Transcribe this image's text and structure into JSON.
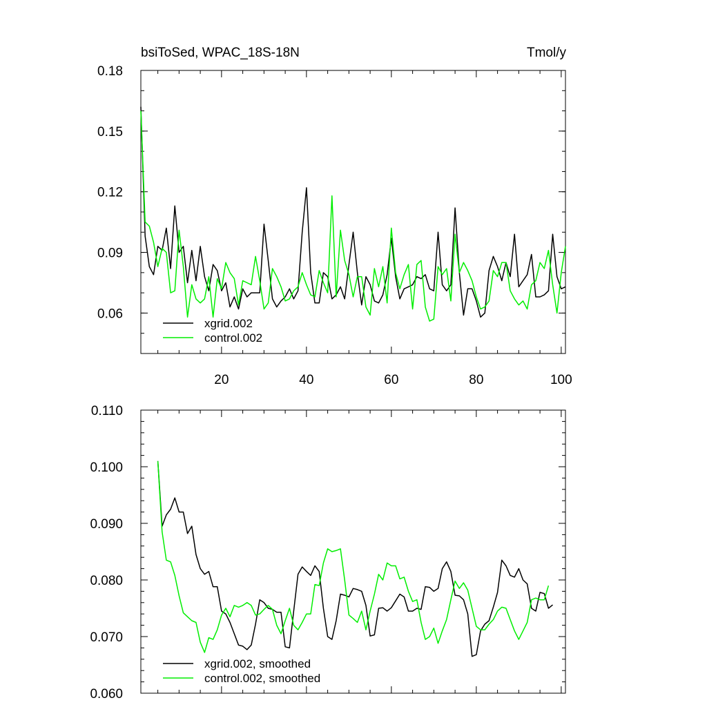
{
  "chart_data": [
    {
      "type": "line",
      "title": "bsiToSed, WPAC_18S-18N",
      "units": "Tmol/y",
      "xlim": [
        1,
        101
      ],
      "ylim": [
        0.04,
        0.18
      ],
      "x_ticks": [
        20,
        40,
        60,
        80,
        100
      ],
      "x_tick_labels": [
        "20",
        "40",
        "60",
        "80",
        "100"
      ],
      "y_ticks": [
        0.06,
        0.09,
        0.12,
        0.15,
        0.18
      ],
      "y_tick_labels": [
        "0.06",
        "0.09",
        "0.12",
        "0.15",
        "0.18"
      ],
      "legend_position": "bottom-left",
      "series": [
        {
          "name": "xgrid.002",
          "color": "#000000",
          "x_start": 1,
          "values": [
            0.162,
            0.098,
            0.083,
            0.079,
            0.093,
            0.091,
            0.102,
            0.082,
            0.113,
            0.09,
            0.093,
            0.075,
            0.091,
            0.076,
            0.093,
            0.078,
            0.071,
            0.084,
            0.081,
            0.071,
            0.075,
            0.063,
            0.068,
            0.062,
            0.072,
            0.068,
            0.07,
            0.07,
            0.07,
            0.104,
            0.086,
            0.067,
            0.063,
            0.066,
            0.068,
            0.072,
            0.067,
            0.071,
            0.1,
            0.122,
            0.08,
            0.065,
            0.065,
            0.08,
            0.078,
            0.067,
            0.069,
            0.073,
            0.067,
            0.084,
            0.1,
            0.08,
            0.064,
            0.078,
            0.074,
            0.066,
            0.065,
            0.069,
            0.079,
            0.097,
            0.078,
            0.067,
            0.072,
            0.073,
            0.074,
            0.078,
            0.077,
            0.079,
            0.072,
            0.071,
            0.1,
            0.074,
            0.071,
            0.074,
            0.112,
            0.08,
            0.059,
            0.072,
            0.072,
            0.066,
            0.058,
            0.06,
            0.081,
            0.088,
            0.083,
            0.076,
            0.085,
            0.078,
            0.099,
            0.073,
            0.076,
            0.079,
            0.089,
            0.068,
            0.068,
            0.069,
            0.071,
            0.099,
            0.078,
            0.072,
            0.073
          ]
        },
        {
          "name": "control.002",
          "color": "#00ee00",
          "x_start": 1,
          "values": [
            0.16,
            0.105,
            0.103,
            0.095,
            0.083,
            0.092,
            0.09,
            0.07,
            0.071,
            0.101,
            0.083,
            0.058,
            0.074,
            0.067,
            0.065,
            0.067,
            0.078,
            0.058,
            0.077,
            0.072,
            0.085,
            0.08,
            0.077,
            0.064,
            0.076,
            0.075,
            0.074,
            0.088,
            0.076,
            0.062,
            0.065,
            0.082,
            0.078,
            0.073,
            0.066,
            0.067,
            0.071,
            0.073,
            0.08,
            0.074,
            0.069,
            0.068,
            0.081,
            0.075,
            0.07,
            0.118,
            0.068,
            0.101,
            0.086,
            0.079,
            0.068,
            0.078,
            0.078,
            0.063,
            0.059,
            0.082,
            0.073,
            0.083,
            0.065,
            0.102,
            0.08,
            0.072,
            0.079,
            0.084,
            0.062,
            0.084,
            0.086,
            0.063,
            0.056,
            0.057,
            0.083,
            0.079,
            0.082,
            0.066,
            0.099,
            0.08,
            0.085,
            0.081,
            0.076,
            0.068,
            0.062,
            0.063,
            0.066,
            0.081,
            0.078,
            0.085,
            0.085,
            0.071,
            0.067,
            0.064,
            0.066,
            0.062,
            0.074,
            0.076,
            0.085,
            0.082,
            0.091,
            0.074,
            0.06,
            0.08,
            0.093
          ]
        }
      ]
    },
    {
      "type": "line",
      "title": "",
      "xlim": [
        1,
        101
      ],
      "ylim": [
        0.06,
        0.11
      ],
      "x_ticks": [
        20,
        40,
        60,
        80,
        100
      ],
      "y_ticks": [
        0.06,
        0.07,
        0.08,
        0.09,
        0.1,
        0.11
      ],
      "y_tick_labels": [
        "0.060",
        "0.070",
        "0.080",
        "0.090",
        "0.100",
        "0.110"
      ],
      "legend_position": "bottom-left",
      "series": [
        {
          "name": "xgrid.002, smoothed",
          "color": "#000000",
          "x_start": 5,
          "values": [
            0.101,
            0.0895,
            0.0915,
            0.0925,
            0.0945,
            0.092,
            0.092,
            0.0882,
            0.0895,
            0.0845,
            0.082,
            0.081,
            0.0815,
            0.0788,
            0.0788,
            0.0745,
            0.074,
            0.0725,
            0.0705,
            0.0685,
            0.0683,
            0.0677,
            0.0685,
            0.0722,
            0.0765,
            0.076,
            0.075,
            0.0748,
            0.0743,
            0.0743,
            0.0682,
            0.068,
            0.0745,
            0.081,
            0.0823,
            0.0815,
            0.0808,
            0.0825,
            0.0815,
            0.075,
            0.07,
            0.0695,
            0.0728,
            0.0775,
            0.0773,
            0.077,
            0.0785,
            0.0783,
            0.078,
            0.0755,
            0.0701,
            0.0703,
            0.075,
            0.0751,
            0.0745,
            0.0751,
            0.0763,
            0.0775,
            0.077,
            0.0745,
            0.0745,
            0.075,
            0.0748,
            0.0788,
            0.0787,
            0.078,
            0.0785,
            0.082,
            0.0832,
            0.0815,
            0.0773,
            0.0772,
            0.0765,
            0.074,
            0.0665,
            0.0668,
            0.071,
            0.0722,
            0.0728,
            0.0752,
            0.0778,
            0.0835,
            0.0825,
            0.0808,
            0.0805,
            0.082,
            0.08,
            0.0793,
            0.075,
            0.0745,
            0.0778,
            0.0776,
            0.075,
            0.0756
          ]
        },
        {
          "name": "control.002, smoothed",
          "color": "#00ee00",
          "x_start": 5,
          "values": [
            0.101,
            0.0885,
            0.0835,
            0.0832,
            0.0808,
            0.0772,
            0.0742,
            0.0735,
            0.0728,
            0.0725,
            0.069,
            0.0672,
            0.0698,
            0.0695,
            0.0712,
            0.0738,
            0.075,
            0.0735,
            0.0755,
            0.0752,
            0.0755,
            0.076,
            0.0755,
            0.0738,
            0.074,
            0.0748,
            0.0755,
            0.0748,
            0.072,
            0.0705,
            0.0728,
            0.075,
            0.072,
            0.0712,
            0.0725,
            0.074,
            0.074,
            0.0792,
            0.079,
            0.083,
            0.0855,
            0.085,
            0.0852,
            0.0855,
            0.08,
            0.0738,
            0.0732,
            0.0725,
            0.0745,
            0.0712,
            0.0745,
            0.0775,
            0.081,
            0.08,
            0.083,
            0.0825,
            0.0825,
            0.0802,
            0.0805,
            0.078,
            0.0762,
            0.0765,
            0.0725,
            0.0695,
            0.07,
            0.0715,
            0.0688,
            0.071,
            0.073,
            0.0765,
            0.0798,
            0.0785,
            0.0795,
            0.0782,
            0.075,
            0.0718,
            0.0712,
            0.0712,
            0.0722,
            0.073,
            0.0745,
            0.0752,
            0.075,
            0.073,
            0.071,
            0.0695,
            0.071,
            0.0725,
            0.0765,
            0.0768,
            0.0765,
            0.0765,
            0.079
          ]
        }
      ]
    }
  ]
}
